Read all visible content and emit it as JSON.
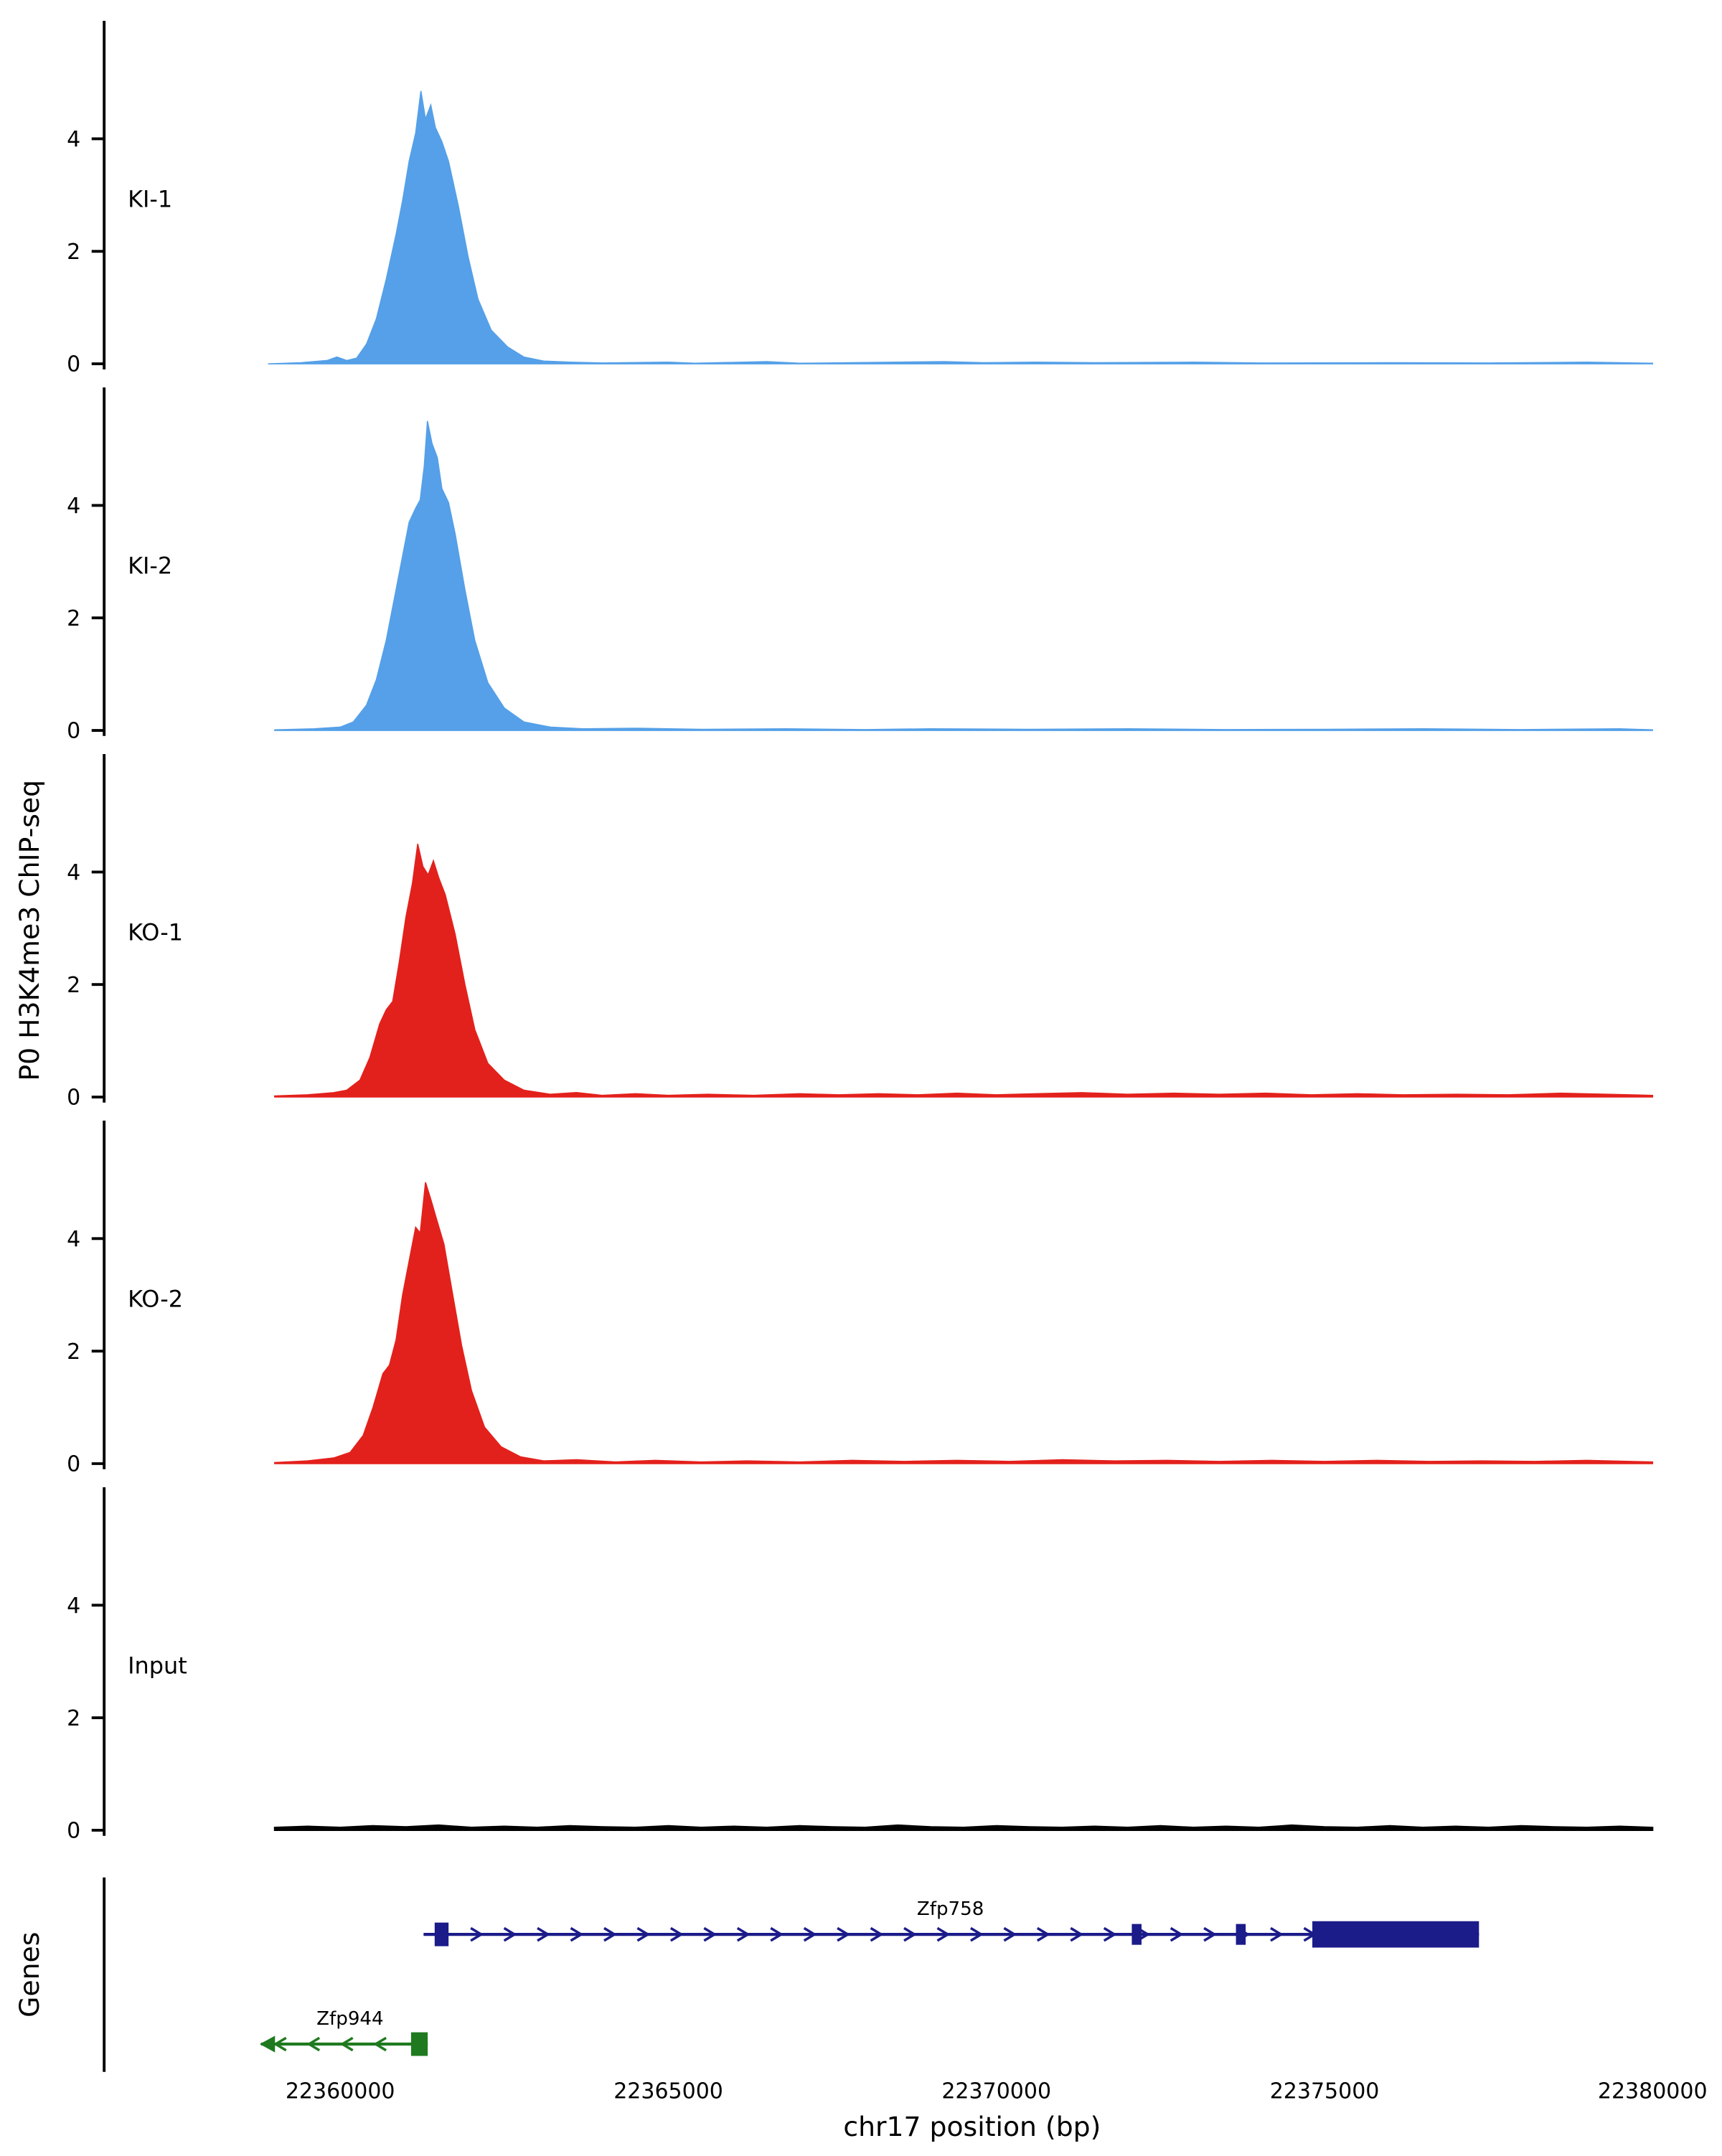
{
  "chart_data": {
    "type": "area",
    "title": "",
    "ylabel": "P0 H3K4me3 ChIP-seq",
    "xlabel": "chr17 position (bp)",
    "genes_label": "Genes",
    "x_domain": [
      22358800,
      22380200
    ],
    "x_ticks": [
      22360000,
      22365000,
      22370000,
      22375000,
      22380000
    ],
    "y_ticks": [
      0,
      2,
      4
    ],
    "ylim": [
      0,
      5.85
    ],
    "grid": false,
    "legend": "none",
    "tracks": [
      {
        "label": "KI-1",
        "color": "#55A0E8",
        "points": [
          [
            22358900,
            0.0
          ],
          [
            22359400,
            0.02
          ],
          [
            22359800,
            0.06
          ],
          [
            22359950,
            0.12
          ],
          [
            22360100,
            0.06
          ],
          [
            22360250,
            0.1
          ],
          [
            22360400,
            0.35
          ],
          [
            22360550,
            0.8
          ],
          [
            22360700,
            1.5
          ],
          [
            22360850,
            2.3
          ],
          [
            22360950,
            2.9
          ],
          [
            22361050,
            3.6
          ],
          [
            22361150,
            4.1
          ],
          [
            22361230,
            4.85
          ],
          [
            22361300,
            4.35
          ],
          [
            22361380,
            4.6
          ],
          [
            22361450,
            4.2
          ],
          [
            22361550,
            3.95
          ],
          [
            22361650,
            3.6
          ],
          [
            22361800,
            2.8
          ],
          [
            22361950,
            1.9
          ],
          [
            22362100,
            1.15
          ],
          [
            22362300,
            0.6
          ],
          [
            22362550,
            0.3
          ],
          [
            22362800,
            0.12
          ],
          [
            22363100,
            0.05
          ],
          [
            22363500,
            0.03
          ],
          [
            22364000,
            0.015
          ],
          [
            22365000,
            0.03
          ],
          [
            22365400,
            0.01
          ],
          [
            22366500,
            0.04
          ],
          [
            22367000,
            0.01
          ],
          [
            22368500,
            0.03
          ],
          [
            22369200,
            0.04
          ],
          [
            22369800,
            0.02
          ],
          [
            22370600,
            0.03
          ],
          [
            22371500,
            0.02
          ],
          [
            22373000,
            0.03
          ],
          [
            22374000,
            0.015
          ],
          [
            22376000,
            0.02
          ],
          [
            22377500,
            0.015
          ],
          [
            22379000,
            0.03
          ],
          [
            22380000,
            0.01
          ]
        ]
      },
      {
        "label": "KI-2",
        "color": "#55A0E8",
        "points": [
          [
            22359000,
            0.01
          ],
          [
            22359600,
            0.03
          ],
          [
            22360000,
            0.06
          ],
          [
            22360200,
            0.15
          ],
          [
            22360400,
            0.45
          ],
          [
            22360550,
            0.9
          ],
          [
            22360700,
            1.6
          ],
          [
            22360850,
            2.5
          ],
          [
            22360950,
            3.1
          ],
          [
            22361050,
            3.7
          ],
          [
            22361150,
            3.95
          ],
          [
            22361220,
            4.1
          ],
          [
            22361280,
            4.7
          ],
          [
            22361330,
            5.5
          ],
          [
            22361400,
            5.1
          ],
          [
            22361480,
            4.85
          ],
          [
            22361550,
            4.3
          ],
          [
            22361650,
            4.05
          ],
          [
            22361750,
            3.5
          ],
          [
            22361900,
            2.5
          ],
          [
            22362050,
            1.6
          ],
          [
            22362250,
            0.85
          ],
          [
            22362500,
            0.4
          ],
          [
            22362800,
            0.15
          ],
          [
            22363200,
            0.06
          ],
          [
            22363700,
            0.03
          ],
          [
            22364500,
            0.04
          ],
          [
            22365500,
            0.02
          ],
          [
            22366800,
            0.03
          ],
          [
            22368000,
            0.015
          ],
          [
            22369000,
            0.03
          ],
          [
            22370500,
            0.02
          ],
          [
            22372000,
            0.03
          ],
          [
            22373500,
            0.015
          ],
          [
            22375000,
            0.02
          ],
          [
            22376500,
            0.03
          ],
          [
            22378000,
            0.015
          ],
          [
            22379500,
            0.03
          ],
          [
            22380000,
            0.01
          ]
        ]
      },
      {
        "label": "KO-1",
        "color": "#E3211C",
        "points": [
          [
            22359000,
            0.02
          ],
          [
            22359500,
            0.04
          ],
          [
            22359900,
            0.08
          ],
          [
            22360100,
            0.12
          ],
          [
            22360300,
            0.3
          ],
          [
            22360450,
            0.7
          ],
          [
            22360600,
            1.3
          ],
          [
            22360700,
            1.55
          ],
          [
            22360800,
            1.7
          ],
          [
            22360900,
            2.4
          ],
          [
            22361000,
            3.2
          ],
          [
            22361100,
            3.8
          ],
          [
            22361180,
            4.5
          ],
          [
            22361260,
            4.1
          ],
          [
            22361340,
            3.95
          ],
          [
            22361420,
            4.2
          ],
          [
            22361500,
            3.9
          ],
          [
            22361600,
            3.6
          ],
          [
            22361750,
            2.9
          ],
          [
            22361900,
            2.0
          ],
          [
            22362050,
            1.2
          ],
          [
            22362250,
            0.6
          ],
          [
            22362500,
            0.3
          ],
          [
            22362800,
            0.12
          ],
          [
            22363200,
            0.05
          ],
          [
            22363600,
            0.08
          ],
          [
            22364000,
            0.03
          ],
          [
            22364500,
            0.06
          ],
          [
            22365000,
            0.03
          ],
          [
            22365600,
            0.05
          ],
          [
            22366300,
            0.03
          ],
          [
            22367000,
            0.06
          ],
          [
            22367600,
            0.04
          ],
          [
            22368200,
            0.06
          ],
          [
            22368800,
            0.04
          ],
          [
            22369400,
            0.07
          ],
          [
            22370000,
            0.04
          ],
          [
            22370600,
            0.06
          ],
          [
            22371300,
            0.08
          ],
          [
            22372000,
            0.05
          ],
          [
            22372700,
            0.07
          ],
          [
            22373400,
            0.05
          ],
          [
            22374100,
            0.07
          ],
          [
            22374800,
            0.04
          ],
          [
            22375500,
            0.06
          ],
          [
            22376200,
            0.04
          ],
          [
            22377000,
            0.05
          ],
          [
            22377800,
            0.04
          ],
          [
            22378600,
            0.07
          ],
          [
            22379300,
            0.05
          ],
          [
            22380000,
            0.03
          ]
        ]
      },
      {
        "label": "KO-2",
        "color": "#E3211C",
        "points": [
          [
            22359000,
            0.02
          ],
          [
            22359500,
            0.05
          ],
          [
            22359900,
            0.1
          ],
          [
            22360150,
            0.2
          ],
          [
            22360350,
            0.5
          ],
          [
            22360500,
            1.0
          ],
          [
            22360650,
            1.6
          ],
          [
            22360750,
            1.75
          ],
          [
            22360850,
            2.2
          ],
          [
            22360950,
            3.0
          ],
          [
            22361050,
            3.6
          ],
          [
            22361150,
            4.2
          ],
          [
            22361220,
            4.1
          ],
          [
            22361300,
            5.0
          ],
          [
            22361380,
            4.7
          ],
          [
            22361480,
            4.3
          ],
          [
            22361580,
            3.9
          ],
          [
            22361700,
            3.1
          ],
          [
            22361850,
            2.1
          ],
          [
            22362000,
            1.3
          ],
          [
            22362200,
            0.65
          ],
          [
            22362450,
            0.3
          ],
          [
            22362750,
            0.12
          ],
          [
            22363100,
            0.05
          ],
          [
            22363600,
            0.07
          ],
          [
            22364200,
            0.03
          ],
          [
            22364800,
            0.06
          ],
          [
            22365500,
            0.03
          ],
          [
            22366200,
            0.05
          ],
          [
            22367000,
            0.03
          ],
          [
            22367800,
            0.06
          ],
          [
            22368600,
            0.04
          ],
          [
            22369400,
            0.06
          ],
          [
            22370200,
            0.04
          ],
          [
            22371000,
            0.07
          ],
          [
            22371800,
            0.05
          ],
          [
            22372600,
            0.06
          ],
          [
            22373400,
            0.04
          ],
          [
            22374200,
            0.06
          ],
          [
            22375000,
            0.04
          ],
          [
            22375800,
            0.06
          ],
          [
            22376600,
            0.04
          ],
          [
            22377400,
            0.05
          ],
          [
            22378200,
            0.04
          ],
          [
            22379000,
            0.06
          ],
          [
            22380000,
            0.03
          ]
        ]
      },
      {
        "label": "Input",
        "color": "#000000",
        "line_only": true,
        "points": [
          [
            22359000,
            0.05
          ],
          [
            22359500,
            0.07
          ],
          [
            22360000,
            0.05
          ],
          [
            22360500,
            0.08
          ],
          [
            22361000,
            0.06
          ],
          [
            22361500,
            0.09
          ],
          [
            22362000,
            0.05
          ],
          [
            22362500,
            0.07
          ],
          [
            22363000,
            0.05
          ],
          [
            22363500,
            0.08
          ],
          [
            22364000,
            0.06
          ],
          [
            22364500,
            0.05
          ],
          [
            22365000,
            0.08
          ],
          [
            22365500,
            0.05
          ],
          [
            22366000,
            0.07
          ],
          [
            22366500,
            0.05
          ],
          [
            22367000,
            0.08
          ],
          [
            22367500,
            0.06
          ],
          [
            22368000,
            0.05
          ],
          [
            22368500,
            0.09
          ],
          [
            22369000,
            0.06
          ],
          [
            22369500,
            0.05
          ],
          [
            22370000,
            0.08
          ],
          [
            22370500,
            0.06
          ],
          [
            22371000,
            0.05
          ],
          [
            22371500,
            0.07
          ],
          [
            22372000,
            0.05
          ],
          [
            22372500,
            0.08
          ],
          [
            22373000,
            0.05
          ],
          [
            22373500,
            0.07
          ],
          [
            22374000,
            0.05
          ],
          [
            22374500,
            0.09
          ],
          [
            22375000,
            0.06
          ],
          [
            22375500,
            0.05
          ],
          [
            22376000,
            0.08
          ],
          [
            22376500,
            0.05
          ],
          [
            22377000,
            0.07
          ],
          [
            22377500,
            0.05
          ],
          [
            22378000,
            0.08
          ],
          [
            22378500,
            0.06
          ],
          [
            22379000,
            0.05
          ],
          [
            22379500,
            0.07
          ],
          [
            22380000,
            0.05
          ]
        ]
      }
    ],
    "genes": [
      {
        "name": "Zfp758",
        "strand": "+",
        "color": "#1B1B8A",
        "start": 22361270,
        "end": 22377354,
        "label_pos": 22369300,
        "exons": [
          [
            22361439,
            22361650,
            17
          ],
          [
            22372063,
            22372211,
            15
          ],
          [
            22373651,
            22373799,
            15
          ],
          [
            22374815,
            22377354,
            19
          ]
        ]
      },
      {
        "name": "Zfp944",
        "strand": "-",
        "color": "#1F7A1F",
        "start": 22358794,
        "end": 22361333,
        "label_pos": 22360150,
        "exons": [
          [
            22361079,
            22361333,
            17
          ]
        ]
      }
    ]
  }
}
